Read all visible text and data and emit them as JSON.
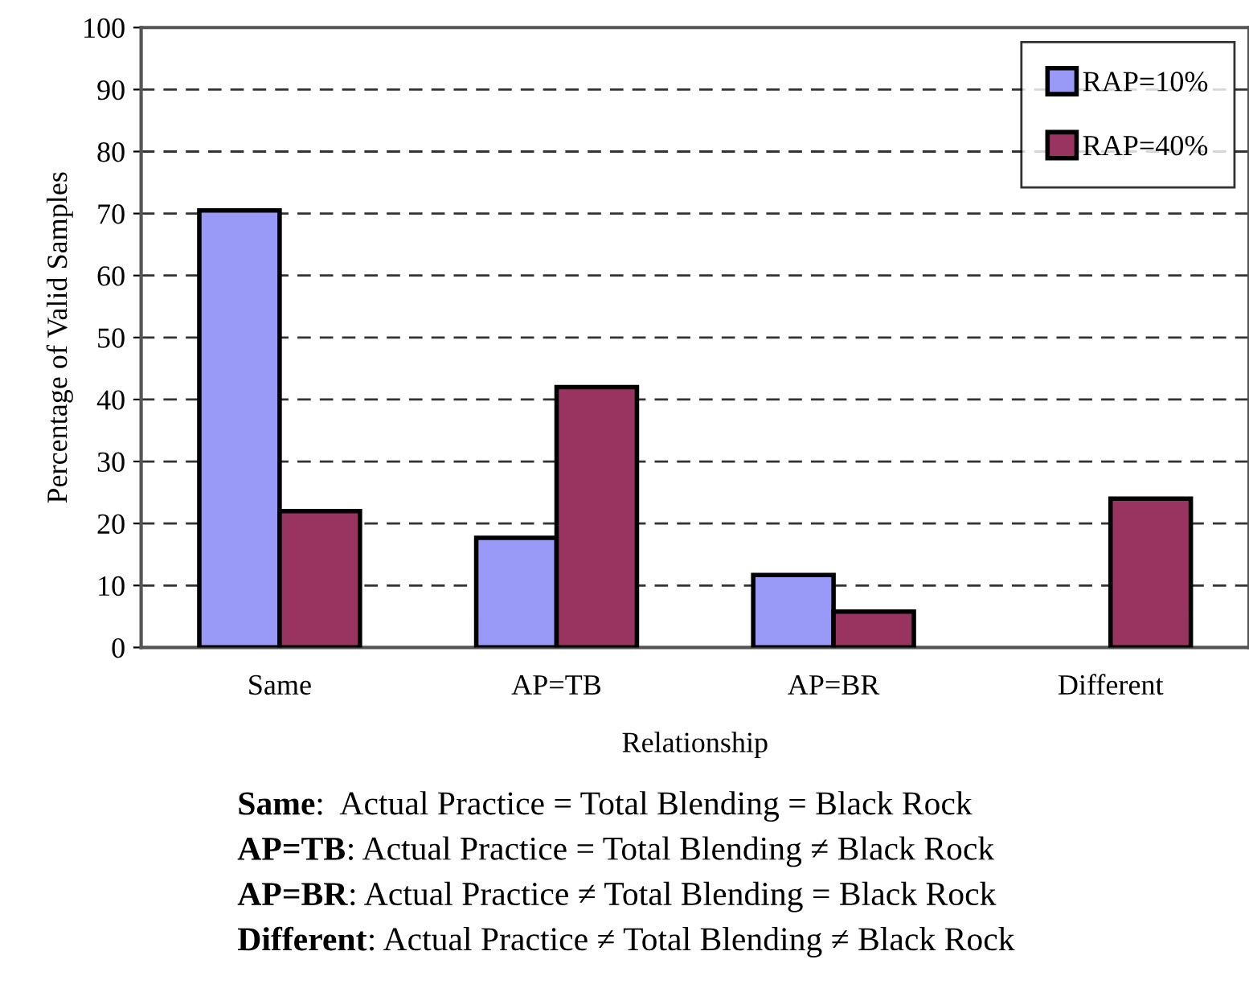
{
  "chart_data": {
    "type": "bar",
    "xlabel": "Relationship",
    "ylabel": "Percentage of Valid Samples",
    "categories": [
      "Same",
      "AP=TB",
      "AP=BR",
      "Different"
    ],
    "series": [
      {
        "name": "RAP=10%",
        "color": "#9999f7",
        "values": [
          70.5,
          17.7,
          11.7,
          null
        ]
      },
      {
        "name": "RAP=40%",
        "color": "#993360",
        "values": [
          22,
          42,
          5.8,
          24
        ]
      }
    ],
    "ylim": [
      0,
      100
    ],
    "yticks": [
      0,
      10,
      20,
      30,
      40,
      50,
      60,
      70,
      80,
      90,
      100
    ],
    "grid": "y",
    "legend": "top right",
    "annotations": [
      "Same:  Actual Practice = Total Blending = Black Rock",
      "AP=TB: Actual Practice = Total Blending ≠ Black Rock",
      "AP=BR: Actual Practice ≠ Total Blending = Black Rock",
      "Different: Actual Practice ≠ Total Blending ≠ Black Rock"
    ]
  }
}
